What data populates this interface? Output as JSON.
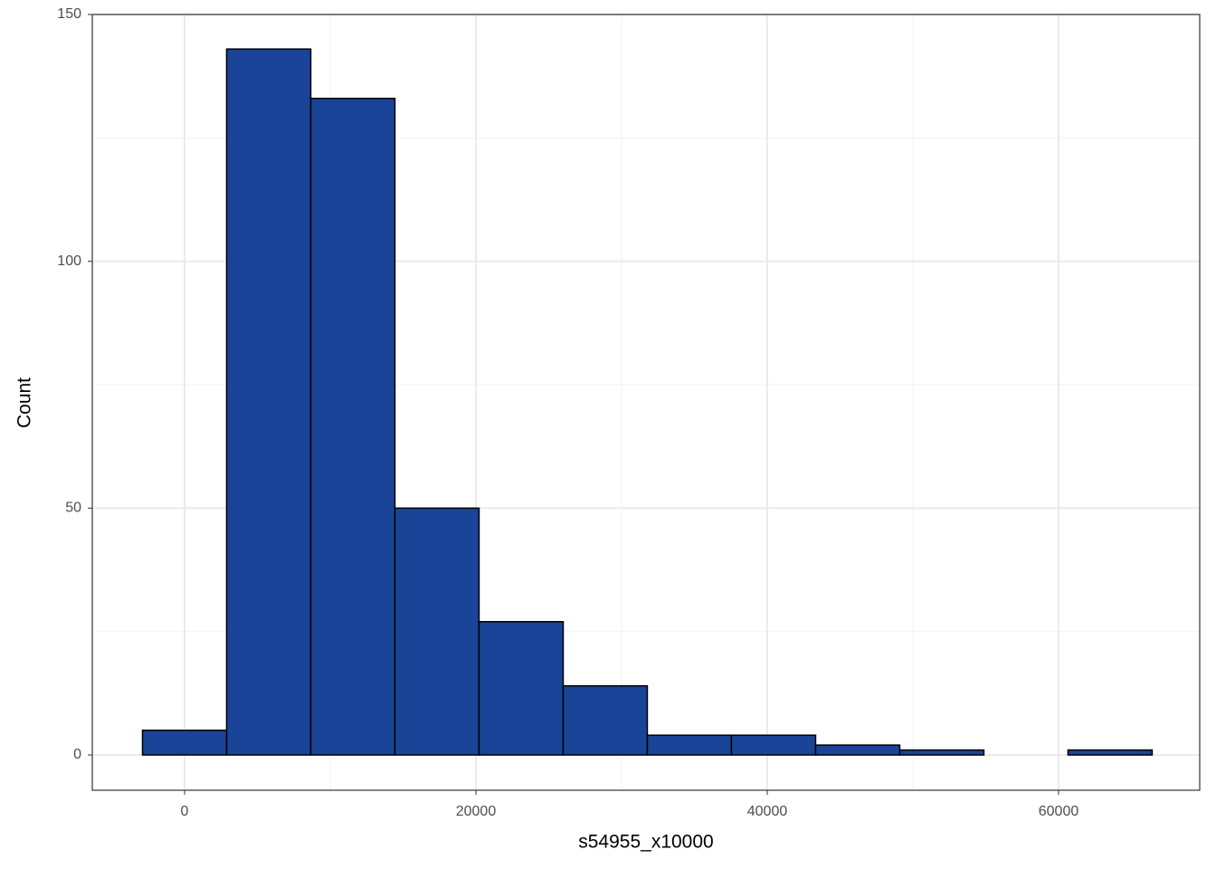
{
  "chart_data": {
    "type": "histogram",
    "x_label": "s54955_x10000",
    "y_label": "Count",
    "bins": [
      -2888,
      2888,
      8664,
      14440,
      20216,
      25992,
      31768,
      37544,
      43320,
      49096,
      54872,
      60648,
      66424
    ],
    "counts": [
      5,
      143,
      133,
      50,
      27,
      14,
      4,
      4,
      2,
      1,
      0,
      1
    ],
    "color": "#1a4498",
    "edge_color": "#000000",
    "xlim": [
      -6335,
      69689
    ],
    "ylim": [
      -7.15,
      150
    ],
    "xticks": [
      0,
      20000,
      40000,
      60000
    ],
    "yticks": [
      0,
      50,
      100,
      150
    ],
    "xminor": [
      10000,
      30000,
      50000
    ],
    "yminor": [
      25,
      75,
      125
    ],
    "grid": true
  }
}
